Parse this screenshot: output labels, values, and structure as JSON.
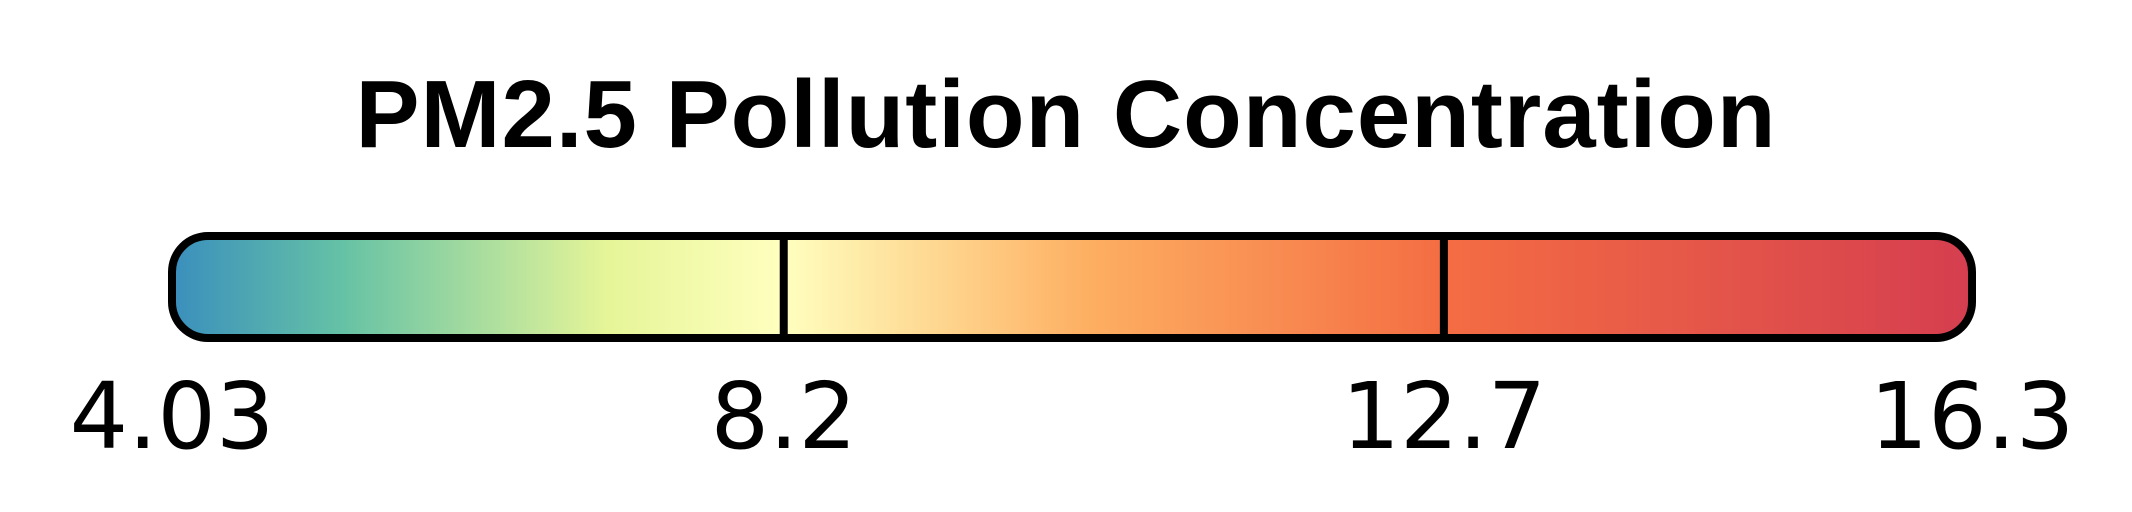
{
  "chart_data": {
    "type": "colorbar",
    "title": "PM2.5 Pollution Concentration",
    "range": [
      4.03,
      16.3
    ],
    "ticks": [
      4.03,
      8.2,
      12.7,
      16.3
    ],
    "tick_labels": [
      "4.03",
      "8.2",
      "12.7",
      "16.3"
    ],
    "boundaries": [
      8.2,
      12.7
    ],
    "colormap": "Spectral_r",
    "color_stops": [
      {
        "value": 4.03,
        "color": "#3a8fbd"
      },
      {
        "value": 5.2,
        "color": "#66c2a5"
      },
      {
        "value": 7.0,
        "color": "#e6f598"
      },
      {
        "value": 8.2,
        "color": "#ffffbf"
      },
      {
        "value": 10.3,
        "color": "#fdae61"
      },
      {
        "value": 12.7,
        "color": "#f46d43"
      },
      {
        "value": 16.3,
        "color": "#d53e4f"
      }
    ],
    "outline_color": "#000000"
  }
}
